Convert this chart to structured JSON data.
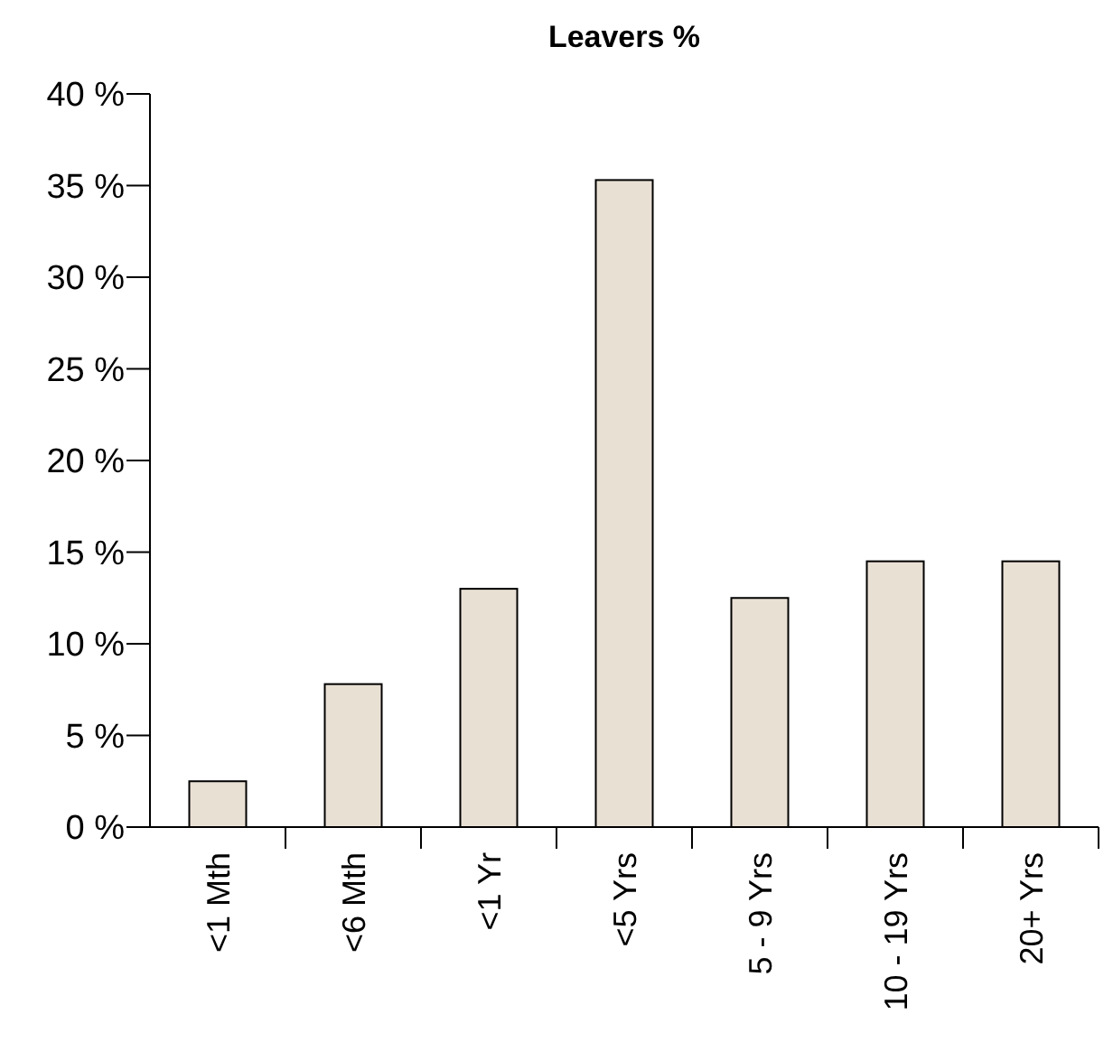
{
  "chart_data": {
    "type": "bar",
    "title": "Leavers %",
    "categories": [
      "<1 Mth",
      "<6 Mth",
      "<1 Yr",
      "<5 Yrs",
      "5 - 9 Yrs",
      "10 - 19 Yrs",
      "20+ Yrs"
    ],
    "values": [
      2.5,
      7.8,
      13.0,
      35.3,
      12.5,
      14.5,
      14.5
    ],
    "color": "#e9e0d4",
    "ylim": [
      0,
      40
    ],
    "yticks": [
      {
        "value": 0,
        "label": "0 %"
      },
      {
        "value": 5,
        "label": "5 %"
      },
      {
        "value": 10,
        "label": "10 %"
      },
      {
        "value": 15,
        "label": "15 %"
      },
      {
        "value": 20,
        "label": "20 %"
      },
      {
        "value": 25,
        "label": "25 %"
      },
      {
        "value": 30,
        "label": "30 %"
      },
      {
        "value": 35,
        "label": "35 %"
      },
      {
        "value": 40,
        "label": "40 %"
      }
    ],
    "grid": false
  }
}
